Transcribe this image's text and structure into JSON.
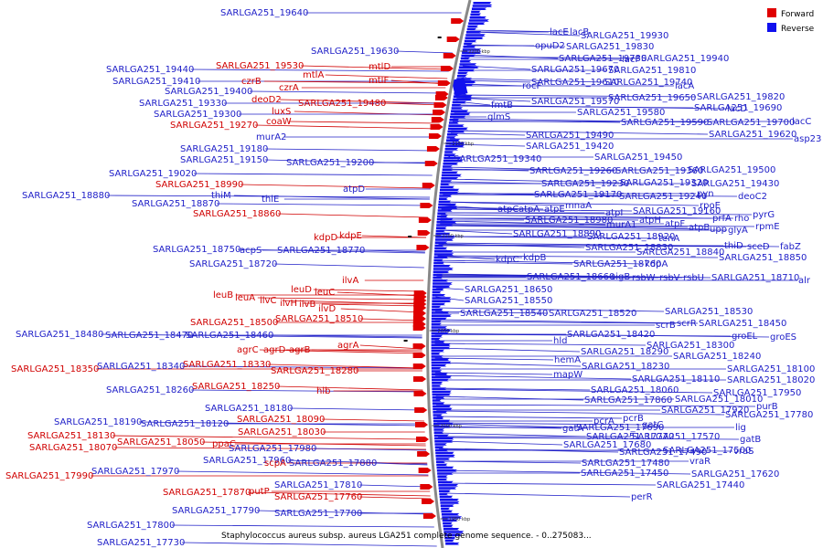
{
  "title": "Staphylococcus aureus subsp. aureus LGA251 complete genome sequence. - 0..275083...",
  "legend": [
    {
      "label": "Forward",
      "color": "#e00000"
    },
    {
      "label": "Reverse",
      "color": "#1010ee"
    }
  ],
  "colors": {
    "forward": "#d00000",
    "reverse": "#2020c8",
    "backbone": "#888888"
  },
  "ticks": [
    "2200 kbp",
    "2150 kbp",
    "2100 kbp",
    "2050 kbp",
    "2000 kbp",
    "1950 kbp"
  ],
  "left_labels": [
    {
      "text": "SARLGA251_19640",
      "strand": "reverse"
    },
    {
      "text": "SARLGA251_19630",
      "strand": "reverse"
    },
    {
      "text": "SARLGA251_19530",
      "strand": "forward"
    },
    {
      "text": "mtlD",
      "strand": "forward"
    },
    {
      "text": "SARLGA251_19440",
      "strand": "reverse"
    },
    {
      "text": "mtlA",
      "strand": "forward"
    },
    {
      "text": "SARLGA251_19410",
      "strand": "reverse"
    },
    {
      "text": "czrB",
      "strand": "forward"
    },
    {
      "text": "mtlF",
      "strand": "forward"
    },
    {
      "text": "czrA",
      "strand": "forward"
    },
    {
      "text": "SARLGA251_19400",
      "strand": "reverse"
    },
    {
      "text": "deoD2",
      "strand": "forward"
    },
    {
      "text": "SARLGA251_19330",
      "strand": "reverse"
    },
    {
      "text": "SARLGA251_19480",
      "strand": "forward"
    },
    {
      "text": "luxS",
      "strand": "forward"
    },
    {
      "text": "SARLGA251_19300",
      "strand": "reverse"
    },
    {
      "text": "coaW",
      "strand": "forward"
    },
    {
      "text": "SARLGA251_19270",
      "strand": "forward"
    },
    {
      "text": "murA2",
      "strand": "reverse"
    },
    {
      "text": "SARLGA251_19180",
      "strand": "reverse"
    },
    {
      "text": "SARLGA251_19150",
      "strand": "reverse"
    },
    {
      "text": "SARLGA251_19200",
      "strand": "reverse"
    },
    {
      "text": "SARLGA251_19020",
      "strand": "reverse"
    },
    {
      "text": "SARLGA251_18990",
      "strand": "forward"
    },
    {
      "text": "atpD",
      "strand": "reverse"
    },
    {
      "text": "SARLGA251_18880",
      "strand": "reverse"
    },
    {
      "text": "thiM",
      "strand": "reverse"
    },
    {
      "text": "thiE",
      "strand": "reverse"
    },
    {
      "text": "SARLGA251_18870",
      "strand": "reverse"
    },
    {
      "text": "SARLGA251_18860",
      "strand": "forward"
    },
    {
      "text": "kdpD",
      "strand": "forward"
    },
    {
      "text": "kdpE",
      "strand": "forward"
    },
    {
      "text": "SARLGA251_18750",
      "strand": "reverse"
    },
    {
      "text": "acpS",
      "strand": "reverse"
    },
    {
      "text": "SARLGA251_18770",
      "strand": "reverse"
    },
    {
      "text": "SARLGA251_18720",
      "strand": "reverse"
    },
    {
      "text": "ilvA",
      "strand": "forward"
    },
    {
      "text": "leuD",
      "strand": "forward"
    },
    {
      "text": "leuC",
      "strand": "forward"
    },
    {
      "text": "leuB",
      "strand": "forward"
    },
    {
      "text": "leuA",
      "strand": "forward"
    },
    {
      "text": "ilvC",
      "strand": "forward"
    },
    {
      "text": "ilvH",
      "strand": "forward"
    },
    {
      "text": "ilvB",
      "strand": "forward"
    },
    {
      "text": "ilvD",
      "strand": "forward"
    },
    {
      "text": "SARLGA251_18500",
      "strand": "forward"
    },
    {
      "text": "SARLGA251_18510",
      "strand": "forward"
    },
    {
      "text": "SARLGA251_18480",
      "strand": "reverse"
    },
    {
      "text": "SARLGA251_18470",
      "strand": "reverse"
    },
    {
      "text": "SARLGA251_18460",
      "strand": "reverse"
    },
    {
      "text": "agrC",
      "strand": "forward"
    },
    {
      "text": "agrD",
      "strand": "forward"
    },
    {
      "text": "agrB",
      "strand": "forward"
    },
    {
      "text": "agrA",
      "strand": "forward"
    },
    {
      "text": "SARLGA251_18350",
      "strand": "forward"
    },
    {
      "text": "SARLGA251_18340",
      "strand": "reverse"
    },
    {
      "text": "SARLGA251_18330",
      "strand": "forward"
    },
    {
      "text": "SARLGA251_18280",
      "strand": "forward"
    },
    {
      "text": "SARLGA251_18260",
      "strand": "reverse"
    },
    {
      "text": "SARLGA251_18250",
      "strand": "forward"
    },
    {
      "text": "hlb",
      "strand": "forward"
    },
    {
      "text": "SARLGA251_18180",
      "strand": "reverse"
    },
    {
      "text": "SARLGA251_18190",
      "strand": "reverse"
    },
    {
      "text": "SARLGA251_18120",
      "strand": "reverse"
    },
    {
      "text": "SARLGA251_18090",
      "strand": "forward"
    },
    {
      "text": "SARLGA251_18130",
      "strand": "forward"
    },
    {
      "text": "SARLGA251_18030",
      "strand": "forward"
    },
    {
      "text": "SARLGA251_18070",
      "strand": "forward"
    },
    {
      "text": "SARLGA251_18050",
      "strand": "forward"
    },
    {
      "text": "ppaC",
      "strand": "forward"
    },
    {
      "text": "SARLGA251_17980",
      "strand": "reverse"
    },
    {
      "text": "SARLGA251_17960",
      "strand": "reverse"
    },
    {
      "text": "scpA",
      "strand": "forward"
    },
    {
      "text": "SARLGA251_17880",
      "strand": "reverse"
    },
    {
      "text": "SARLGA251_17970",
      "strand": "reverse"
    },
    {
      "text": "SARLGA251_17990",
      "strand": "forward"
    },
    {
      "text": "SARLGA251_17810",
      "strand": "reverse"
    },
    {
      "text": "SARLGA251_17870",
      "strand": "forward"
    },
    {
      "text": "putP",
      "strand": "forward"
    },
    {
      "text": "SARLGA251_17760",
      "strand": "forward"
    },
    {
      "text": "SARLGA251_17790",
      "strand": "reverse"
    },
    {
      "text": "SARLGA251_17700",
      "strand": "reverse"
    },
    {
      "text": "SARLGA251_17800",
      "strand": "reverse"
    },
    {
      "text": "SARLGA251_17730",
      "strand": "reverse"
    }
  ],
  "right_labels": [
    {
      "text": "lacE",
      "strand": "reverse"
    },
    {
      "text": "lacB",
      "strand": "reverse"
    },
    {
      "text": "SARLGA251_19930",
      "strand": "reverse"
    },
    {
      "text": "opuD2",
      "strand": "reverse"
    },
    {
      "text": "SARLGA251_19830",
      "strand": "reverse"
    },
    {
      "text": "SARLGA251_19730",
      "strand": "reverse"
    },
    {
      "text": "lacF",
      "strand": "reverse"
    },
    {
      "text": "SARLGA251_19940",
      "strand": "reverse"
    },
    {
      "text": "SARLGA251_19670",
      "strand": "reverse"
    },
    {
      "text": "SARLGA251_19810",
      "strand": "reverse"
    },
    {
      "text": "SARLGA251_19610",
      "strand": "reverse"
    },
    {
      "text": "SARLGA251_19740",
      "strand": "reverse"
    },
    {
      "text": "lacA",
      "strand": "reverse"
    },
    {
      "text": "rocF",
      "strand": "reverse"
    },
    {
      "text": "SARLGA251_19570",
      "strand": "reverse"
    },
    {
      "text": "SARLGA251_19650",
      "strand": "reverse"
    },
    {
      "text": "SARLGA251_19820",
      "strand": "reverse"
    },
    {
      "text": "fmtB",
      "strand": "reverse"
    },
    {
      "text": "SARLGA251_19580",
      "strand": "reverse"
    },
    {
      "text": "SARLGA251_19690",
      "strand": "reverse"
    },
    {
      "text": "lacD",
      "strand": "reverse"
    },
    {
      "text": "glmS",
      "strand": "reverse"
    },
    {
      "text": "SARLGA251_19590",
      "strand": "reverse"
    },
    {
      "text": "SARLGA251_19700",
      "strand": "reverse"
    },
    {
      "text": "lacC",
      "strand": "reverse"
    },
    {
      "text": "SARLGA251_19490",
      "strand": "reverse"
    },
    {
      "text": "SARLGA251_19620",
      "strand": "reverse"
    },
    {
      "text": "asp23",
      "strand": "reverse"
    },
    {
      "text": "SARLGA251_19420",
      "strand": "reverse"
    },
    {
      "text": "SARLGA251_19340",
      "strand": "reverse"
    },
    {
      "text": "SARLGA251_19450",
      "strand": "reverse"
    },
    {
      "text": "SARLGA251_19260",
      "strand": "reverse"
    },
    {
      "text": "SARLGA251_19360",
      "strand": "reverse"
    },
    {
      "text": "SARLGA251_19500",
      "strand": "reverse"
    },
    {
      "text": "SARLGA251_19230",
      "strand": "reverse"
    },
    {
      "text": "SARLGA251_19320",
      "strand": "reverse"
    },
    {
      "text": "SARLGA251_19430",
      "strand": "reverse"
    },
    {
      "text": "SARLGA251_19170",
      "strand": "reverse"
    },
    {
      "text": "SARLGA251_19240",
      "strand": "reverse"
    },
    {
      "text": "pyn",
      "strand": "reverse"
    },
    {
      "text": "deoC2",
      "strand": "reverse"
    },
    {
      "text": "atpC",
      "strand": "reverse"
    },
    {
      "text": "atpA",
      "strand": "reverse"
    },
    {
      "text": "atpE",
      "strand": "reverse"
    },
    {
      "text": "mnaA",
      "strand": "reverse"
    },
    {
      "text": "atpI",
      "strand": "reverse"
    },
    {
      "text": "SARLGA251_19160",
      "strand": "reverse"
    },
    {
      "text": "rpoE",
      "strand": "reverse"
    },
    {
      "text": "SARLGA251_18980",
      "strand": "reverse"
    },
    {
      "text": "atpH",
      "strand": "reverse"
    },
    {
      "text": "prfA",
      "strand": "reverse"
    },
    {
      "text": "rho",
      "strand": "reverse"
    },
    {
      "text": "pyrG",
      "strand": "reverse"
    },
    {
      "text": "murA1",
      "strand": "reverse"
    },
    {
      "text": "atpF",
      "strand": "reverse"
    },
    {
      "text": "atpB",
      "strand": "reverse"
    },
    {
      "text": "upp",
      "strand": "reverse"
    },
    {
      "text": "glyA",
      "strand": "reverse"
    },
    {
      "text": "rpmE",
      "strand": "reverse"
    },
    {
      "text": "SARLGA251_18890",
      "strand": "reverse"
    },
    {
      "text": "SARLGA251_18920",
      "strand": "reverse"
    },
    {
      "text": "tenA",
      "strand": "reverse"
    },
    {
      "text": "SARLGA251_18830",
      "strand": "reverse"
    },
    {
      "text": "thiD",
      "strand": "reverse"
    },
    {
      "text": "sceD",
      "strand": "reverse"
    },
    {
      "text": "fabZ",
      "strand": "reverse"
    },
    {
      "text": "SARLGA251_18840",
      "strand": "reverse"
    },
    {
      "text": "SARLGA251_18850",
      "strand": "reverse"
    },
    {
      "text": "kdpC",
      "strand": "reverse"
    },
    {
      "text": "kdpB",
      "strand": "reverse"
    },
    {
      "text": "SARLGA251_18760",
      "strand": "reverse"
    },
    {
      "text": "kdpA",
      "strand": "reverse"
    },
    {
      "text": "SARLGA251_18660",
      "strand": "reverse"
    },
    {
      "text": "sigB",
      "strand": "reverse"
    },
    {
      "text": "rsbW",
      "strand": "reverse"
    },
    {
      "text": "rsbV",
      "strand": "reverse"
    },
    {
      "text": "rsbU",
      "strand": "reverse"
    },
    {
      "text": "SARLGA251_18710",
      "strand": "reverse"
    },
    {
      "text": "alr",
      "strand": "reverse"
    },
    {
      "text": "SARLGA251_18650",
      "strand": "reverse"
    },
    {
      "text": "SARLGA251_18550",
      "strand": "reverse"
    },
    {
      "text": "SARLGA251_18540",
      "strand": "reverse"
    },
    {
      "text": "SARLGA251_18520",
      "strand": "reverse"
    },
    {
      "text": "SARLGA251_18530",
      "strand": "reverse"
    },
    {
      "text": "scrB",
      "strand": "reverse"
    },
    {
      "text": "scrR",
      "strand": "reverse"
    },
    {
      "text": "SARLGA251_18450",
      "strand": "reverse"
    },
    {
      "text": "SARLGA251_18420",
      "strand": "reverse"
    },
    {
      "text": "groEL",
      "strand": "reverse"
    },
    {
      "text": "groES",
      "strand": "reverse"
    },
    {
      "text": "hld",
      "strand": "reverse"
    },
    {
      "text": "SARLGA251_18300",
      "strand": "reverse"
    },
    {
      "text": "SARLGA251_18290",
      "strand": "reverse"
    },
    {
      "text": "SARLGA251_18240",
      "strand": "reverse"
    },
    {
      "text": "hemA",
      "strand": "reverse"
    },
    {
      "text": "SARLGA251_18230",
      "strand": "reverse"
    },
    {
      "text": "SARLGA251_18100",
      "strand": "reverse"
    },
    {
      "text": "mapW",
      "strand": "reverse"
    },
    {
      "text": "SARLGA251_18110",
      "strand": "reverse"
    },
    {
      "text": "SARLGA251_18020",
      "strand": "reverse"
    },
    {
      "text": "SARLGA251_18060",
      "strand": "reverse"
    },
    {
      "text": "SARLGA251_17950",
      "strand": "reverse"
    },
    {
      "text": "SARLGA251_18010",
      "strand": "reverse"
    },
    {
      "text": "purB",
      "strand": "reverse"
    },
    {
      "text": "SARLGA251_17860",
      "strand": "reverse"
    },
    {
      "text": "SARLGA251_17920",
      "strand": "reverse"
    },
    {
      "text": "pcrB",
      "strand": "reverse"
    },
    {
      "text": "SARLGA251_17780",
      "strand": "reverse"
    },
    {
      "text": "pcrA",
      "strand": "reverse"
    },
    {
      "text": "gatC",
      "strand": "reverse"
    },
    {
      "text": "SARLGA251_17690",
      "strand": "reverse"
    },
    {
      "text": "lig",
      "strand": "reverse"
    },
    {
      "text": "gatA",
      "strand": "reverse"
    },
    {
      "text": "SARLGA251_17770",
      "strand": "reverse"
    },
    {
      "text": "SARLGA251_17570",
      "strand": "reverse"
    },
    {
      "text": "gatB",
      "strand": "reverse"
    },
    {
      "text": "SARLGA251_17680",
      "strand": "reverse"
    },
    {
      "text": "SARLGA251_17500",
      "strand": "reverse"
    },
    {
      "text": "vraS",
      "strand": "reverse"
    },
    {
      "text": "SARLGA251_17490",
      "strand": "reverse"
    },
    {
      "text": "vraR",
      "strand": "reverse"
    },
    {
      "text": "SARLGA251_17480",
      "strand": "reverse"
    },
    {
      "text": "SARLGA251_17620",
      "strand": "reverse"
    },
    {
      "text": "SARLGA251_17450",
      "strand": "reverse"
    },
    {
      "text": "SARLGA251_17440",
      "strand": "reverse"
    },
    {
      "text": "perR",
      "strand": "reverse"
    }
  ]
}
